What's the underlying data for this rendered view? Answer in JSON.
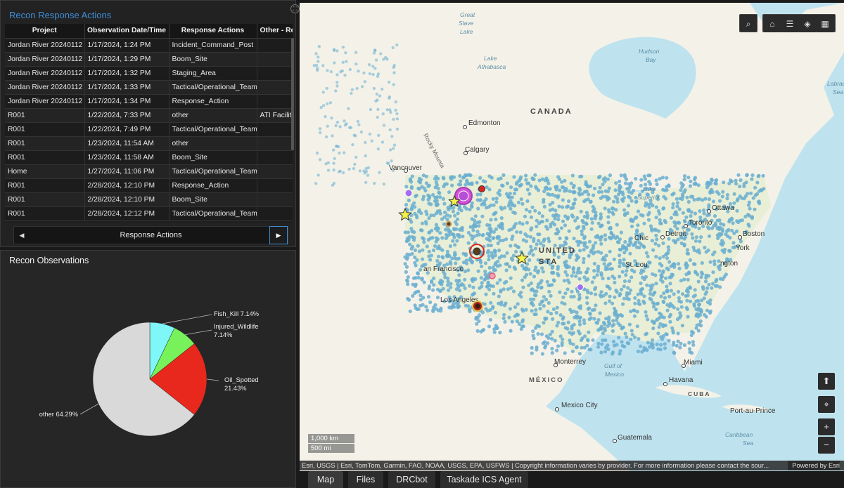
{
  "table_panel": {
    "title": "Recon Response Actions",
    "columns": [
      "Project",
      "Observation Date/Time",
      "Response Actions",
      "Other - Resp"
    ],
    "rows": [
      [
        "Jordan River 20240112",
        "1/17/2024, 1:24 PM",
        "Incident_Command_Post",
        ""
      ],
      [
        "Jordan River 20240112",
        "1/17/2024, 1:29 PM",
        "Boom_Site",
        ""
      ],
      [
        "Jordan River 20240112",
        "1/17/2024, 1:32 PM",
        "Staging_Area",
        ""
      ],
      [
        "Jordan River 20240112",
        "1/17/2024, 1:33 PM",
        "Tactical/Operational_Team",
        ""
      ],
      [
        "Jordan River 20240112",
        "1/17/2024, 1:34 PM",
        "Response_Action",
        ""
      ],
      [
        "R001",
        "1/22/2024, 7:33 PM",
        "other",
        "ATI Facility"
      ],
      [
        "R001",
        "1/22/2024, 7:49 PM",
        "Tactical/Operational_Team",
        ""
      ],
      [
        "R001",
        "1/23/2024, 11:54 AM",
        "other",
        ""
      ],
      [
        "R001",
        "1/23/2024, 11:58 AM",
        "Boom_Site",
        ""
      ],
      [
        "Home",
        "1/27/2024, 11:06 PM",
        "Tactical/Operational_Team",
        ""
      ],
      [
        "R001",
        "2/28/2024, 12:10 PM",
        "Response_Action",
        ""
      ],
      [
        "R001",
        "2/28/2024, 12:10 PM",
        "Boom_Site",
        ""
      ],
      [
        "R001",
        "2/28/2024, 12:12 PM",
        "Tactical/Operational_Team",
        ""
      ]
    ],
    "nav_label": "Response Actions",
    "nav_prev_icon": "chevron-left-icon",
    "nav_next_icon": "chevron-right-icon"
  },
  "chart_panel": {
    "title": "Recon Observations"
  },
  "chart_data": {
    "type": "pie",
    "title": "Recon Observations",
    "slices": [
      {
        "label": "Fish_Kill",
        "value": 7.14,
        "color": "#7ff7f7",
        "text": "Fish_Kill 7.14%"
      },
      {
        "label": "Injured_Wildlife",
        "value": 7.14,
        "color": "#77f25a",
        "text_line1": "Injured_Wildlife",
        "text_line2": "7.14%"
      },
      {
        "label": "Oil_Spotted",
        "value": 21.43,
        "color": "#e8281c",
        "text_line1": "Oil_Spotted",
        "text_line2": "21.43%"
      },
      {
        "label": "other",
        "value": 64.29,
        "color": "#d9d9d9",
        "text": "other 64.29%"
      }
    ]
  },
  "map": {
    "labels": {
      "great_slave_lake": [
        "Great",
        "Slave",
        "Lake"
      ],
      "lake_athabasca": [
        "Lake",
        "Athabasca"
      ],
      "hudson_bay": [
        "Hudson",
        "Bay"
      ],
      "labrador_sea": [
        "Labrado",
        "Sea"
      ],
      "canada": "CANADA",
      "edmonton": "Edmonton",
      "calgary": "Calgary",
      "vancouver": "Vancouver",
      "rocky_mountains": "Rocky Mounta",
      "lake_superior": [
        "Lake",
        "Superior"
      ],
      "ottawa": "Ottawa",
      "toronto": "Toronto",
      "detroit": "Detroit",
      "chicago": "Chic",
      "boston": "Boston",
      "new_york": "York",
      "washington": "ngton",
      "united_states": [
        "UNITED",
        "STA"
      ],
      "san_francisco": "an Francisco",
      "los_angeles": "Los Angeles",
      "st_louis": "St. Lou",
      "monterrey": "Monterrey",
      "gulf_of_mexico": [
        "Gulf of",
        "Mexico"
      ],
      "miami": "Miami",
      "havana": "Havana",
      "cuba": "CUBA",
      "mexico": "MÉXICO",
      "mexico_city": "Mexico City",
      "port_au_prince": "Port-au-Prince",
      "caribbean_sea": [
        "Caribbean",
        "Sea"
      ],
      "guatemala": "Guatemala"
    },
    "scale_km": "1,000 km",
    "scale_mi": "500 mi",
    "attribution": "Esri, USGS | Esri, TomTom, Garmin, FAO, NOAA, USGS, EPA, USFWS | Copyright information varies by provider. For more information please contact the sour...",
    "powered_by": "Powered by Esri",
    "tools": {
      "search": "search-icon",
      "home": "home-icon",
      "legend": "legend-icon",
      "layers": "layers-icon",
      "qr": "qr-code-icon",
      "compass": "compass-icon",
      "locate": "locate-icon",
      "zoom_in": "+",
      "zoom_out": "−"
    }
  },
  "tabs": [
    "Map",
    "Files",
    "DRCbot",
    "Taskade ICS Agent"
  ],
  "active_tab": "Map",
  "colors": {
    "accent": "#3d8fd6",
    "panel_bg": "#222222",
    "water": "#bfe3ee",
    "land": "#f4f2e8",
    "point": "#6aaed0"
  }
}
